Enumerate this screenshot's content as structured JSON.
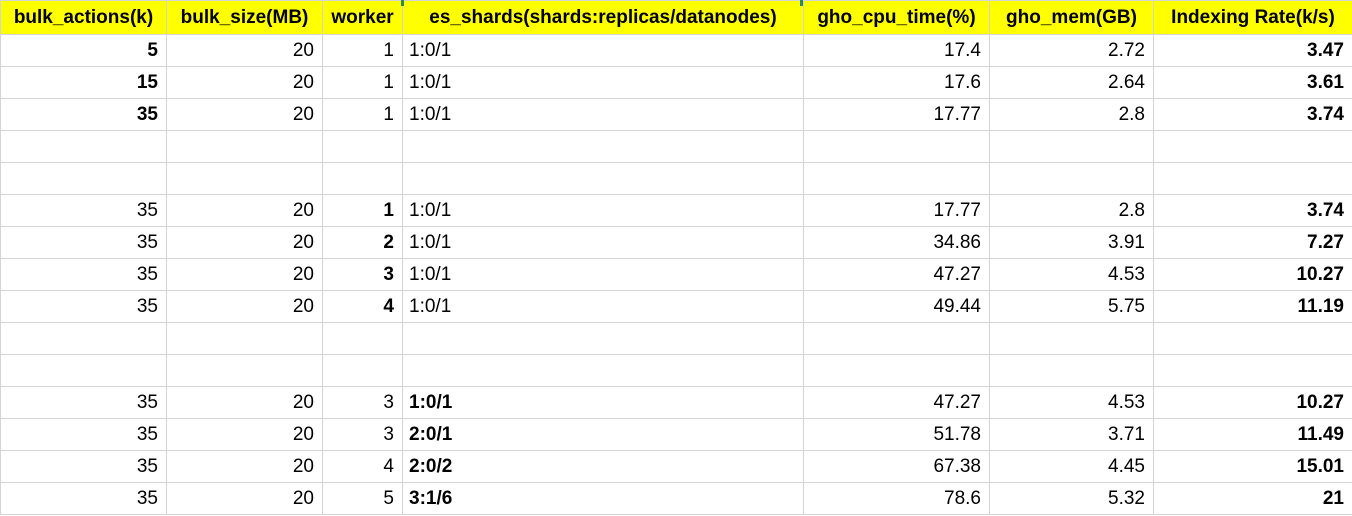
{
  "headers": [
    "bulk_actions(k)",
    "bulk_size(MB)",
    "worker",
    "es_shards(shards:replicas/datanodes)",
    "gho_cpu_time(%)",
    "gho_mem(GB)",
    "Indexing Rate(k/s)"
  ],
  "rows": [
    {
      "blank": false,
      "cells": [
        "5",
        "20",
        "1",
        "1:0/1",
        "17.4",
        "2.72",
        "3.47"
      ],
      "bold": [
        true,
        false,
        false,
        false,
        false,
        false,
        true
      ]
    },
    {
      "blank": false,
      "cells": [
        "15",
        "20",
        "1",
        "1:0/1",
        "17.6",
        "2.64",
        "3.61"
      ],
      "bold": [
        true,
        false,
        false,
        false,
        false,
        false,
        true
      ]
    },
    {
      "blank": false,
      "cells": [
        "35",
        "20",
        "1",
        "1:0/1",
        "17.77",
        "2.8",
        "3.74"
      ],
      "bold": [
        true,
        false,
        false,
        false,
        false,
        false,
        true
      ]
    },
    {
      "blank": true
    },
    {
      "blank": true
    },
    {
      "blank": false,
      "cells": [
        "35",
        "20",
        "1",
        "1:0/1",
        "17.77",
        "2.8",
        "3.74"
      ],
      "bold": [
        false,
        false,
        true,
        false,
        false,
        false,
        true
      ]
    },
    {
      "blank": false,
      "cells": [
        "35",
        "20",
        "2",
        "1:0/1",
        "34.86",
        "3.91",
        "7.27"
      ],
      "bold": [
        false,
        false,
        true,
        false,
        false,
        false,
        true
      ]
    },
    {
      "blank": false,
      "cells": [
        "35",
        "20",
        "3",
        "1:0/1",
        "47.27",
        "4.53",
        "10.27"
      ],
      "bold": [
        false,
        false,
        true,
        false,
        false,
        false,
        true
      ]
    },
    {
      "blank": false,
      "cells": [
        "35",
        "20",
        "4",
        "1:0/1",
        "49.44",
        "5.75",
        "11.19"
      ],
      "bold": [
        false,
        false,
        true,
        false,
        false,
        false,
        true
      ]
    },
    {
      "blank": true
    },
    {
      "blank": true
    },
    {
      "blank": false,
      "cells": [
        "35",
        "20",
        "3",
        "1:0/1",
        "47.27",
        "4.53",
        "10.27"
      ],
      "bold": [
        false,
        false,
        false,
        true,
        false,
        false,
        true
      ]
    },
    {
      "blank": false,
      "cells": [
        "35",
        "20",
        "3",
        "2:0/1",
        "51.78",
        "3.71",
        "11.49"
      ],
      "bold": [
        false,
        false,
        false,
        true,
        false,
        false,
        true
      ]
    },
    {
      "blank": false,
      "cells": [
        "35",
        "20",
        "4",
        "2:0/2",
        "67.38",
        "4.45",
        "15.01"
      ],
      "bold": [
        false,
        false,
        false,
        true,
        false,
        false,
        true
      ]
    },
    {
      "blank": false,
      "cells": [
        "35",
        "20",
        "5",
        "3:1/6",
        "78.6",
        "5.32",
        "21"
      ],
      "bold": [
        false,
        false,
        false,
        true,
        false,
        false,
        true
      ]
    }
  ]
}
